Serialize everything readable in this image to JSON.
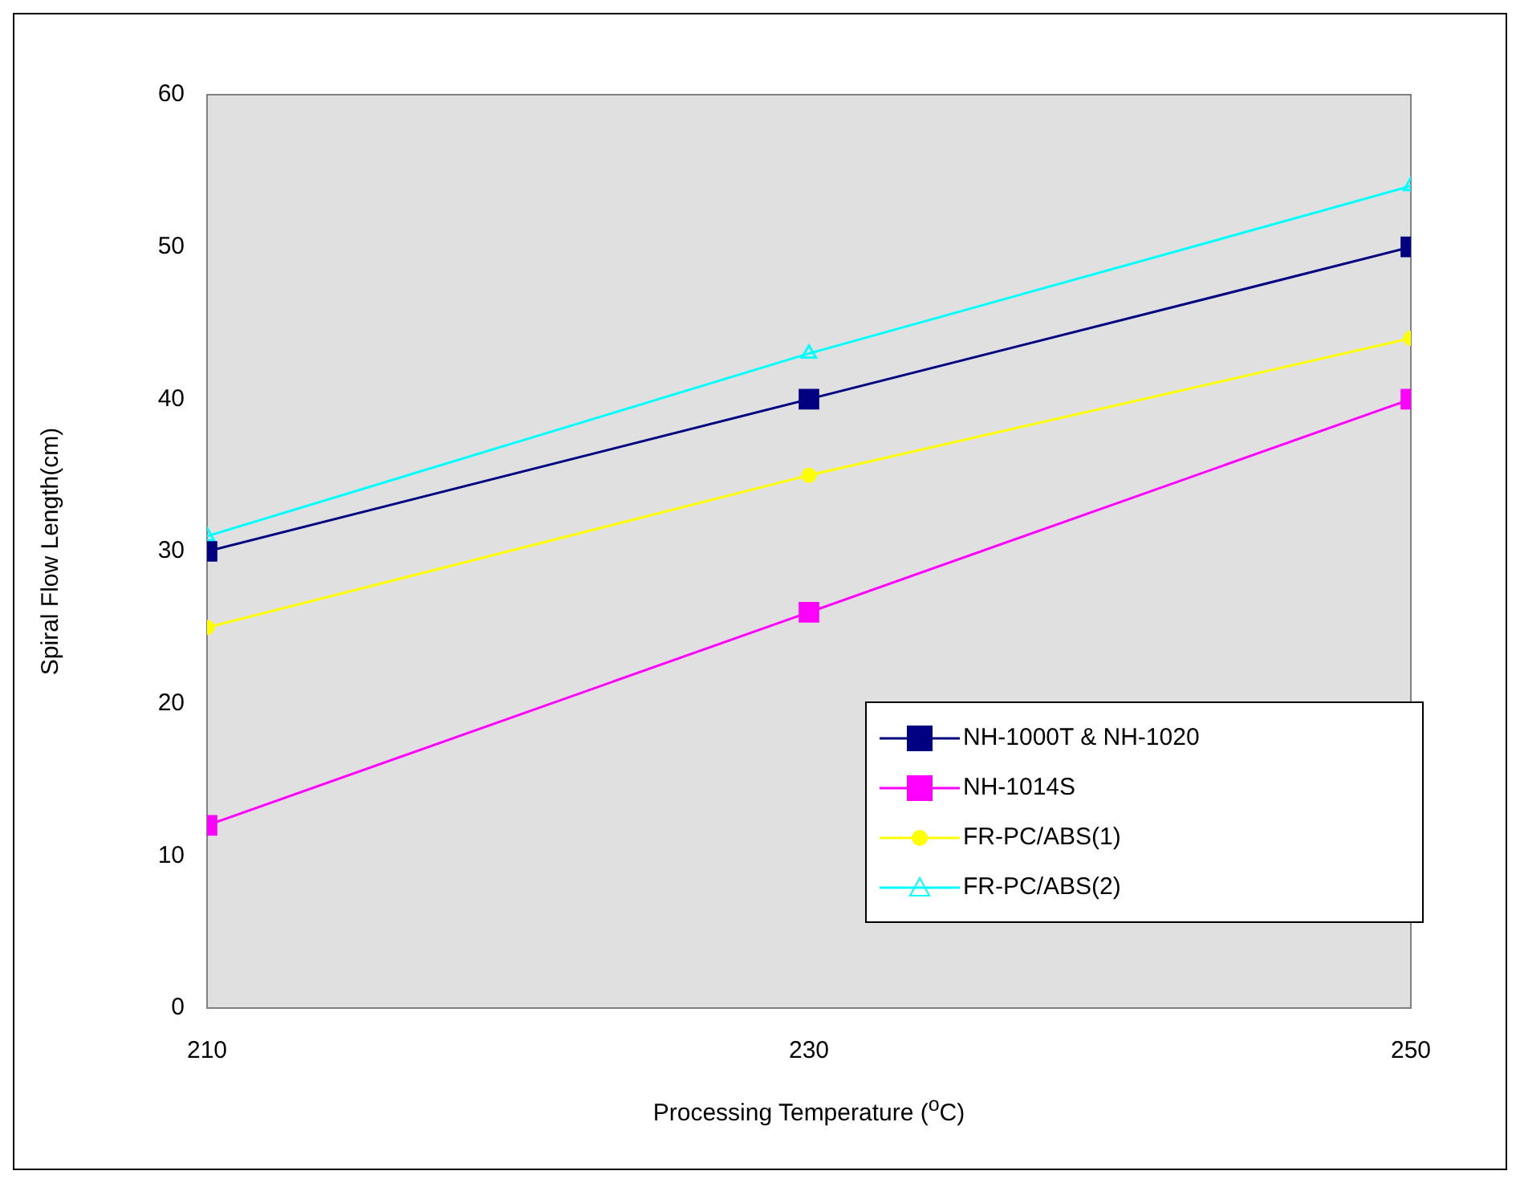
{
  "chart_data": {
    "type": "line",
    "xlabel": "Processing Temperature ($^{o}$C)",
    "ylabel": "Spiral Flow Length(cm)",
    "x": [
      210,
      230,
      250
    ],
    "xlim": [
      210,
      250
    ],
    "xticks": [
      210,
      230,
      250
    ],
    "ylim": [
      0,
      60
    ],
    "yticks": [
      0,
      10,
      20,
      30,
      40,
      50,
      60
    ],
    "grid": false,
    "legend": "bottom right",
    "line_style": "solid",
    "series": [
      {
        "name": "NH-1000T & NH-1020",
        "color": "#000080",
        "marker": "square",
        "values": [
          30,
          40,
          50
        ]
      },
      {
        "name": "NH-1014S",
        "color": "#ff00ff",
        "marker": "square",
        "values": [
          12,
          26,
          40
        ]
      },
      {
        "name": "FR-PC/ABS(1)",
        "color": "#ffff00",
        "marker": "circle",
        "values": [
          25,
          35,
          44
        ]
      },
      {
        "name": "FR-PC/ABS(2)",
        "color": "#00ffff",
        "marker": "triangle",
        "values": [
          31,
          43,
          54
        ]
      }
    ]
  }
}
